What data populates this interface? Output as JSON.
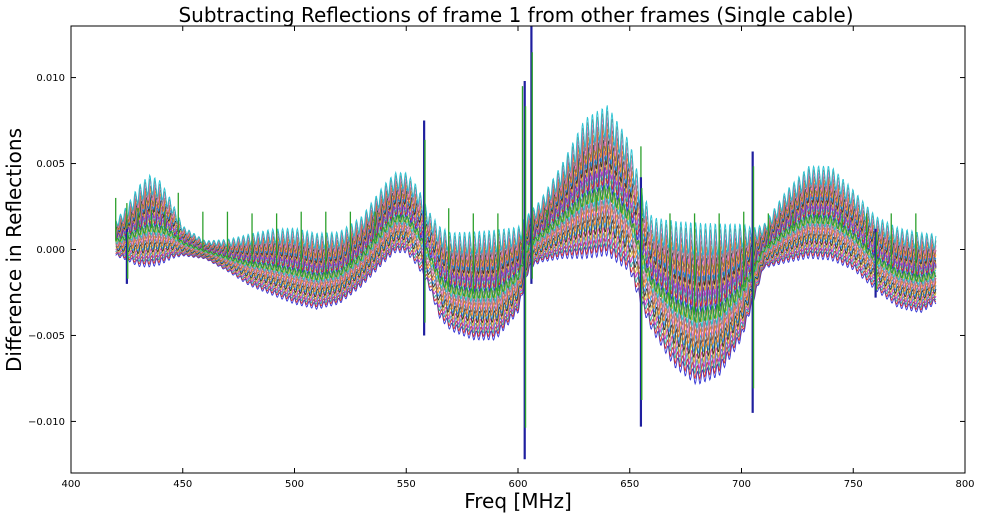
{
  "chart_data": {
    "type": "line",
    "title": "Subtracting Reflections of frame 1 from other frames (Single cable)",
    "xlabel": "Freq [MHz]",
    "ylabel": "Difference in Reflections",
    "xlim": [
      400,
      800
    ],
    "ylim": [
      -0.013,
      0.013
    ],
    "xticks": [
      400,
      450,
      500,
      550,
      600,
      650,
      700,
      750,
      800
    ],
    "xtick_labels": [
      "400",
      "450",
      "500",
      "550",
      "600",
      "650",
      "700",
      "750",
      "800"
    ],
    "yticks": [
      -0.01,
      -0.005,
      0.0,
      0.005,
      0.01
    ],
    "ytick_labels": [
      "−0.010",
      "−0.005",
      "0.000",
      "0.005",
      "0.010"
    ],
    "grid": false,
    "legend": "none",
    "colors": [
      "#1f1fd0",
      "#d02020",
      "#20a0a0",
      "#c020c0",
      "#d0b020",
      "#202020",
      "#2080e0",
      "#ff7f0e",
      "#8c564b",
      "#e377c2",
      "#7f7f7f",
      "#17becf",
      "#bcbd22",
      "#9467bd"
    ],
    "envelope": {
      "x": [
        420,
        425,
        430,
        435,
        440,
        445,
        450,
        460,
        470,
        480,
        490,
        500,
        510,
        520,
        530,
        540,
        545,
        550,
        555,
        560,
        565,
        570,
        580,
        590,
        600,
        605,
        610,
        620,
        630,
        640,
        650,
        655,
        660,
        670,
        680,
        690,
        700,
        705,
        710,
        720,
        730,
        740,
        750,
        760,
        770,
        780,
        787
      ],
      "max": [
        0.0015,
        0.0022,
        0.0032,
        0.0038,
        0.0035,
        0.0025,
        0.0012,
        0.0004,
        0.0004,
        0.0006,
        0.0008,
        0.0008,
        0.0005,
        0.0006,
        0.0015,
        0.0033,
        0.004,
        0.004,
        0.0032,
        0.0018,
        0.0008,
        0.0004,
        0.0004,
        0.0005,
        0.0008,
        0.0018,
        0.0025,
        0.0045,
        0.0068,
        0.0075,
        0.0055,
        0.003,
        0.0012,
        0.0008,
        0.0006,
        0.0006,
        0.0008,
        0.0008,
        0.0012,
        0.003,
        0.0043,
        0.0043,
        0.003,
        0.0015,
        0.0008,
        0.0005,
        0.0005
      ],
      "min": [
        -0.0003,
        -0.0005,
        -0.0008,
        -0.0008,
        -0.0007,
        -0.0004,
        -0.0003,
        -0.0005,
        -0.0012,
        -0.002,
        -0.0025,
        -0.003,
        -0.0033,
        -0.003,
        -0.002,
        -0.0006,
        0.0,
        0.0,
        -0.0008,
        -0.002,
        -0.0038,
        -0.0045,
        -0.005,
        -0.005,
        -0.0035,
        -0.001,
        -0.0006,
        -0.0003,
        -0.0002,
        0.0,
        -0.001,
        -0.003,
        -0.0045,
        -0.0065,
        -0.0075,
        -0.007,
        -0.005,
        -0.003,
        -0.001,
        -0.0006,
        -0.0003,
        -0.0004,
        -0.001,
        -0.0022,
        -0.0032,
        -0.0035,
        -0.003
      ]
    },
    "series": [
      {
        "name": "",
        "color": "#2ca02c",
        "spikes": [
          {
            "x": 420,
            "y": 0.003
          },
          {
            "x": 425,
            "y": 0.0027
          },
          {
            "x": 430,
            "y": 0.0024
          },
          {
            "x": 436,
            "y": 0.0023
          },
          {
            "x": 442,
            "y": 0.0022
          },
          {
            "x": 448,
            "y": 0.0033
          },
          {
            "x": 459,
            "y": 0.0022
          },
          {
            "x": 470,
            "y": 0.0022
          },
          {
            "x": 481,
            "y": 0.0021
          },
          {
            "x": 492,
            "y": 0.0021
          },
          {
            "x": 503,
            "y": 0.0022
          },
          {
            "x": 514,
            "y": 0.0022
          },
          {
            "x": 525,
            "y": 0.0022
          },
          {
            "x": 536,
            "y": 0.0022
          },
          {
            "x": 547,
            "y": 0.002
          },
          {
            "x": 558,
            "y": 0.007
          },
          {
            "x": 569,
            "y": 0.0024
          },
          {
            "x": 580,
            "y": 0.0021
          },
          {
            "x": 591,
            "y": 0.0021
          },
          {
            "x": 602,
            "y": 0.0095
          },
          {
            "x": 606,
            "y": 0.0135
          },
          {
            "x": 613,
            "y": 0.0023
          },
          {
            "x": 624,
            "y": 0.0021
          },
          {
            "x": 635,
            "y": 0.0022
          },
          {
            "x": 646,
            "y": 0.0022
          },
          {
            "x": 655,
            "y": 0.006
          },
          {
            "x": 668,
            "y": 0.0021
          },
          {
            "x": 679,
            "y": 0.0021
          },
          {
            "x": 690,
            "y": 0.0021
          },
          {
            "x": 701,
            "y": 0.0022
          },
          {
            "x": 705,
            "y": 0.0055
          },
          {
            "x": 712,
            "y": 0.0021
          },
          {
            "x": 723,
            "y": 0.0021
          },
          {
            "x": 734,
            "y": 0.0021
          },
          {
            "x": 745,
            "y": 0.0021
          },
          {
            "x": 756,
            "y": 0.0021
          },
          {
            "x": 767,
            "y": 0.0021
          },
          {
            "x": 778,
            "y": 0.0021
          }
        ]
      }
    ],
    "glitches": [
      {
        "x": 425,
        "min": -0.002,
        "max": 0.0012
      },
      {
        "x": 558,
        "min": -0.005,
        "max": 0.0075
      },
      {
        "x": 603,
        "min": -0.0122,
        "max": 0.0098
      },
      {
        "x": 606,
        "min": -0.002,
        "max": 0.0135
      },
      {
        "x": 655,
        "min": -0.0103,
        "max": 0.0042
      },
      {
        "x": 705,
        "min": -0.0095,
        "max": 0.0057
      },
      {
        "x": 760,
        "min": -0.0028,
        "max": 0.0012
      }
    ]
  }
}
